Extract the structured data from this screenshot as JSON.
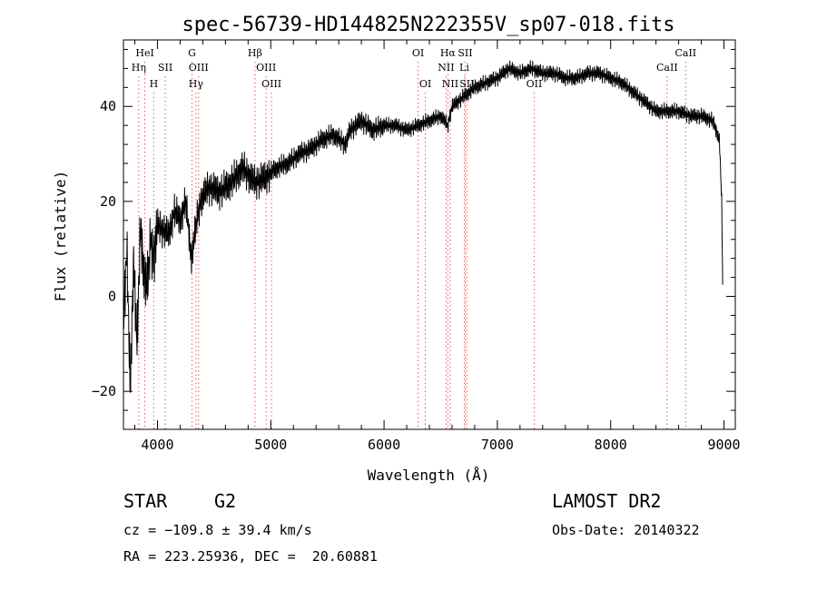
{
  "chart_data": {
    "type": "line",
    "title": "spec-56739-HD144825N222355V_sp07-018.fits",
    "xlabel": "Wavelength (Å)",
    "ylabel": "Flux (relative)",
    "xlim": [
      3700,
      9100
    ],
    "ylim": [
      -28,
      54
    ],
    "xticks": [
      4000,
      5000,
      6000,
      7000,
      8000,
      9000
    ],
    "yticks": [
      -20,
      0,
      20,
      40
    ],
    "grid": false,
    "series": [
      {
        "x": [
          3700,
          3730,
          3760,
          3790,
          3820,
          3850,
          3880,
          3910,
          3940,
          3970,
          4000,
          4050,
          4100,
          4150,
          4200,
          4250,
          4300,
          4340,
          4380,
          4450,
          4550,
          4650,
          4750,
          4861,
          4950,
          5050,
          5150,
          5250,
          5350,
          5450,
          5550,
          5660,
          5700,
          5800,
          5900,
          6000,
          6100,
          6200,
          6300,
          6400,
          6500,
          6563,
          6600,
          6700,
          6800,
          6900,
          7000,
          7100,
          7200,
          7300,
          7400,
          7500,
          7600,
          7700,
          7800,
          7900,
          8000,
          8100,
          8200,
          8300,
          8400,
          8500,
          8600,
          8700,
          8800,
          8900,
          8960,
          8980,
          8990
        ],
        "y": [
          -5,
          10,
          -20,
          8,
          -10,
          15,
          5,
          2,
          12,
          8,
          15,
          14,
          13,
          18,
          16,
          20,
          8,
          15,
          20,
          23,
          22,
          24,
          27,
          24,
          25,
          27,
          28,
          30,
          31,
          33,
          34,
          32,
          35,
          37,
          35,
          36,
          36,
          35,
          36,
          37,
          38,
          36,
          40,
          42,
          44,
          45,
          46,
          48,
          47,
          48,
          47,
          47,
          46,
          46,
          47,
          47,
          46,
          45,
          43,
          41,
          39,
          39,
          39,
          38,
          38,
          37,
          33,
          20,
          0
        ]
      }
    ],
    "line_markers": [
      {
        "label": "HeI",
        "x": 3889,
        "row": 1
      },
      {
        "label": "Hη",
        "x": 3835,
        "row": 2
      },
      {
        "label": "SII",
        "x": 4069,
        "row": 2
      },
      {
        "label": "H",
        "x": 3968,
        "row": 3
      },
      {
        "label": "G",
        "x": 4305,
        "row": 1
      },
      {
        "label": "OIII",
        "x": 4363,
        "row": 2
      },
      {
        "label": "Hγ",
        "x": 4340,
        "row": 3
      },
      {
        "label": "Hβ",
        "x": 4861,
        "row": 1
      },
      {
        "label": "OIII",
        "x": 4959,
        "row": 2
      },
      {
        "label": "OIII",
        "x": 5007,
        "row": 3
      },
      {
        "label": "OI",
        "x": 6300,
        "row": 1
      },
      {
        "label": "OI",
        "x": 6364,
        "row": 3
      },
      {
        "label": "Hα",
        "x": 6563,
        "row": 1
      },
      {
        "label": "SII",
        "x": 6716,
        "row": 1
      },
      {
        "label": "NII",
        "x": 6548,
        "row": 2
      },
      {
        "label": "Li",
        "x": 6708,
        "row": 2
      },
      {
        "label": "NII",
        "x": 6584,
        "row": 3
      },
      {
        "label": "SII",
        "x": 6731,
        "row": 3
      },
      {
        "label": "OII",
        "x": 7325,
        "row": 3
      },
      {
        "label": "CaII",
        "x": 8662,
        "row": 1
      },
      {
        "label": "CaII",
        "x": 8498,
        "row": 2
      }
    ]
  },
  "info": {
    "object_class": "STAR",
    "subclass": "G2",
    "redshift": "cz = −109.8 ± 39.4 km/s",
    "coords": "RA = 223.25936, DEC =  20.60881",
    "survey": "LAMOST DR2",
    "obs_date": "Obs-Date: 20140322"
  },
  "colors": {
    "marker_line": "#e06060",
    "spectrum": "#000000"
  }
}
